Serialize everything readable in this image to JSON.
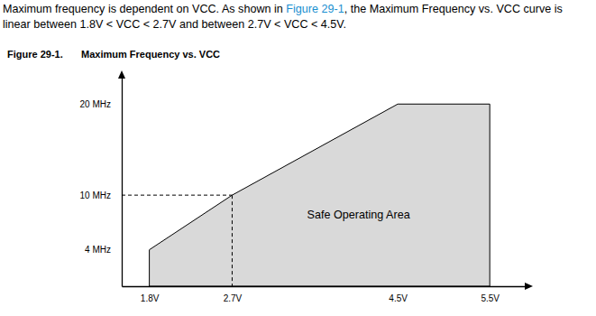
{
  "chart_data": {
    "type": "area",
    "subtitle": [
      "Maximum frequency is dependent on VCC. As shown in Figure 29-1, the Maximum Frequency vs. VCC curve is",
      "linear between 1.8V < VCC < 2.7V and between 2.7V < VCC < 4.5V."
    ],
    "title": "Figure 29-1. Maximum Frequency vs. VCC",
    "annotations": [
      "Safe Operating Area"
    ],
    "x": [
      1.8,
      2.7,
      4.5,
      5.5
    ],
    "values": [
      4,
      10,
      20,
      20
    ],
    "color": "#d9d9d9",
    "xlim": [
      1.5,
      5.9
    ],
    "ylim": [
      0,
      23
    ],
    "xticks": [
      {
        "value": 1.8,
        "label": "1.8V"
      },
      {
        "value": 2.7,
        "label": "2.7V"
      },
      {
        "value": 4.5,
        "label": "4.5V"
      },
      {
        "value": 5.5,
        "label": "5.5V"
      }
    ],
    "yticks": [
      {
        "value": 4,
        "label": "4 MHz"
      },
      {
        "value": 10,
        "label": "10 MHz"
      },
      {
        "value": 20,
        "label": "20 MHz"
      }
    ],
    "grid": false
  }
}
